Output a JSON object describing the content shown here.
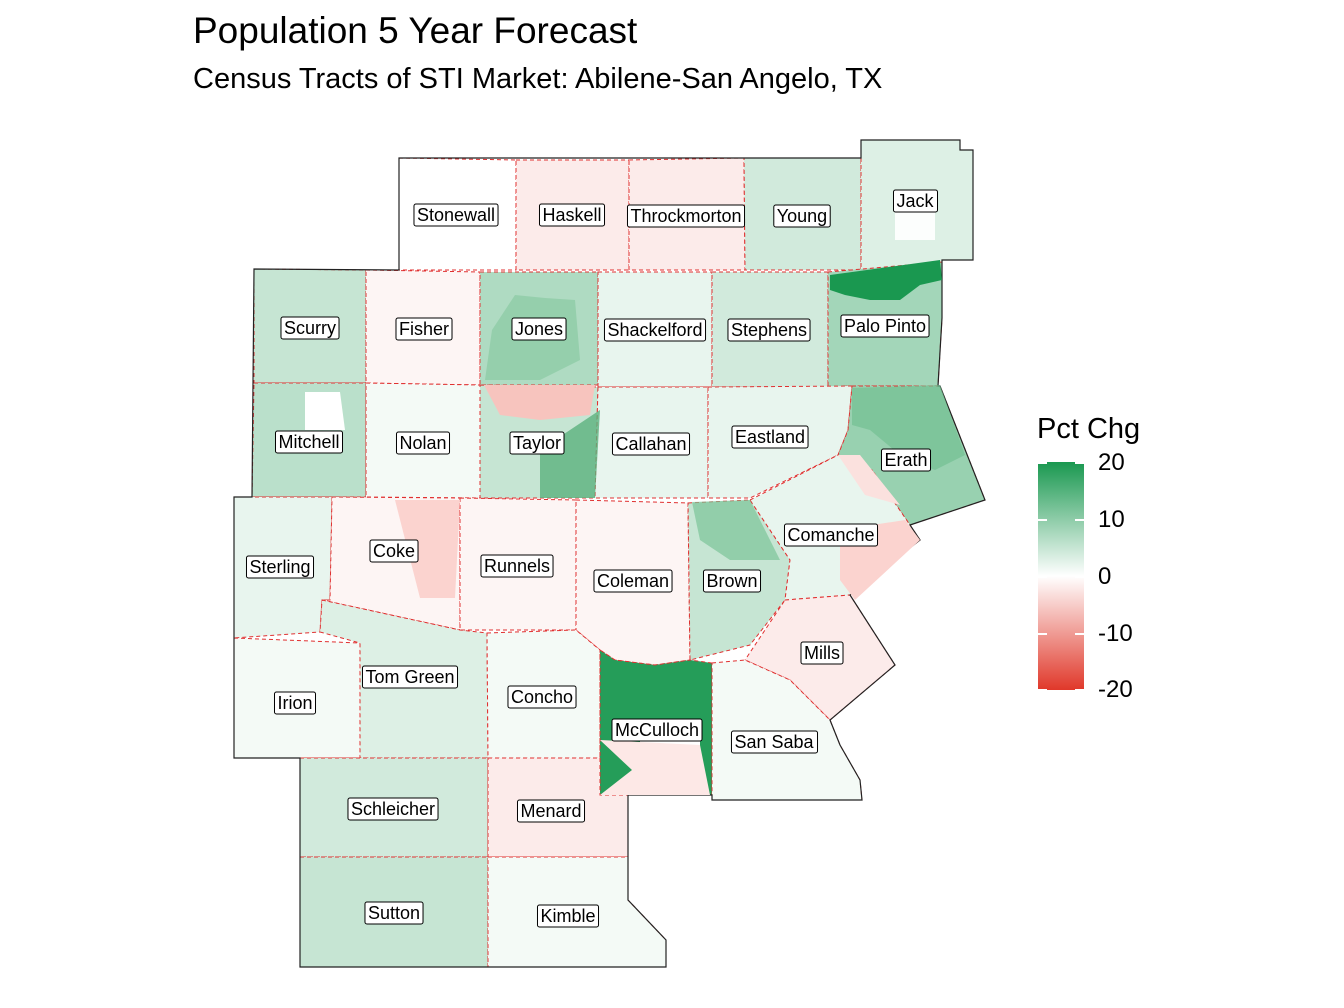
{
  "title": "Population 5 Year Forecast",
  "subtitle": "Census Tracts of STI Market: Abilene-San Angelo, TX",
  "legend": {
    "title": "Pct Chg",
    "ticks": [
      "20",
      "10",
      "0",
      "-10",
      "-20"
    ],
    "range": [
      -20,
      20
    ],
    "colors": {
      "high": "#1a9850",
      "mid": "#ffffff",
      "low": "#e0382a"
    }
  },
  "boundary_color": "#e03030",
  "counties": [
    {
      "name": "Stonewall",
      "pct": 0
    },
    {
      "name": "Haskell",
      "pct": -2
    },
    {
      "name": "Throckmorton",
      "pct": -2
    },
    {
      "name": "Young",
      "pct": 4
    },
    {
      "name": "Jack",
      "pct": 3
    },
    {
      "name": "Scurry",
      "pct": 5
    },
    {
      "name": "Fisher",
      "pct": -1
    },
    {
      "name": "Jones",
      "pct": 7
    },
    {
      "name": "Shackelford",
      "pct": 2
    },
    {
      "name": "Stephens",
      "pct": 4
    },
    {
      "name": "Palo Pinto",
      "pct": 8
    },
    {
      "name": "Mitchell",
      "pct": 6
    },
    {
      "name": "Nolan",
      "pct": 1
    },
    {
      "name": "Taylor",
      "pct": 5
    },
    {
      "name": "Callahan",
      "pct": 2
    },
    {
      "name": "Eastland",
      "pct": 2
    },
    {
      "name": "Erath",
      "pct": 9
    },
    {
      "name": "Sterling",
      "pct": 2
    },
    {
      "name": "Coke",
      "pct": -1
    },
    {
      "name": "Runnels",
      "pct": -1
    },
    {
      "name": "Coleman",
      "pct": -1
    },
    {
      "name": "Brown",
      "pct": 5
    },
    {
      "name": "Comanche",
      "pct": 2
    },
    {
      "name": "Irion",
      "pct": 1
    },
    {
      "name": "Tom Green",
      "pct": 3
    },
    {
      "name": "Concho",
      "pct": 1
    },
    {
      "name": "Mills",
      "pct": -2
    },
    {
      "name": "McCulloch",
      "pct": 19
    },
    {
      "name": "San Saba",
      "pct": 1
    },
    {
      "name": "Schleicher",
      "pct": 4
    },
    {
      "name": "Menard",
      "pct": -2
    },
    {
      "name": "Sutton",
      "pct": 5
    },
    {
      "name": "Kimble",
      "pct": 1
    }
  ]
}
